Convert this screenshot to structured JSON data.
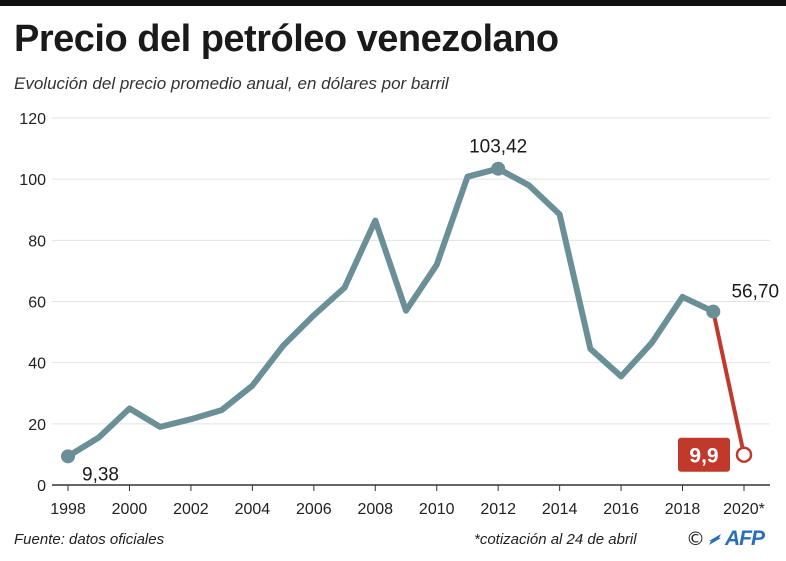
{
  "chart_data": {
    "type": "line",
    "title": "Precio del petróleo venezolano",
    "subtitle": "Evolución del precio promedio anual, en dólares por barril",
    "xlabel": "",
    "ylabel": "",
    "ylim": [
      0,
      120
    ],
    "xlim": [
      1998,
      2020
    ],
    "y_ticks": [
      0,
      20,
      40,
      60,
      80,
      100,
      120
    ],
    "x_ticks": [
      "1998",
      "2000",
      "2002",
      "2004",
      "2006",
      "2008",
      "2010",
      "2012",
      "2014",
      "2016",
      "2018",
      "2020*"
    ],
    "grid": true,
    "series": [
      {
        "color": "#6a8f97",
        "x": [
          1998,
          1999,
          2000,
          2001,
          2002,
          2003,
          2004,
          2005,
          2006,
          2007,
          2008,
          2009,
          2010,
          2011,
          2012,
          2013,
          2014,
          2015,
          2016,
          2017,
          2018,
          2019
        ],
        "values": [
          9.38,
          15.5,
          25.0,
          19.0,
          21.5,
          24.5,
          32.5,
          45.5,
          55.5,
          64.5,
          86.5,
          57.0,
          72.0,
          100.8,
          103.42,
          98.0,
          88.5,
          44.5,
          35.5,
          46.5,
          61.5,
          56.7
        ]
      },
      {
        "color": "#c0392b",
        "x": [
          2019,
          2020
        ],
        "values": [
          56.7,
          9.9
        ]
      }
    ],
    "annotations": [
      {
        "x": 1998,
        "y": 9.38,
        "text": "9,38"
      },
      {
        "x": 2012,
        "y": 103.42,
        "text": "103,42"
      },
      {
        "x": 2019,
        "y": 56.7,
        "text": "56,70"
      },
      {
        "x": 2020,
        "y": 9.9,
        "text": "9,9"
      }
    ],
    "colors": {
      "grid": "#e3e3e3",
      "axis": "#333333",
      "line": "#6a8f97",
      "highlight": "#c0392b"
    }
  },
  "footer": {
    "source": "Fuente: datos oficiales",
    "note": "*cotización al 24 de abril",
    "copyright": "©",
    "agency": "AFP"
  }
}
